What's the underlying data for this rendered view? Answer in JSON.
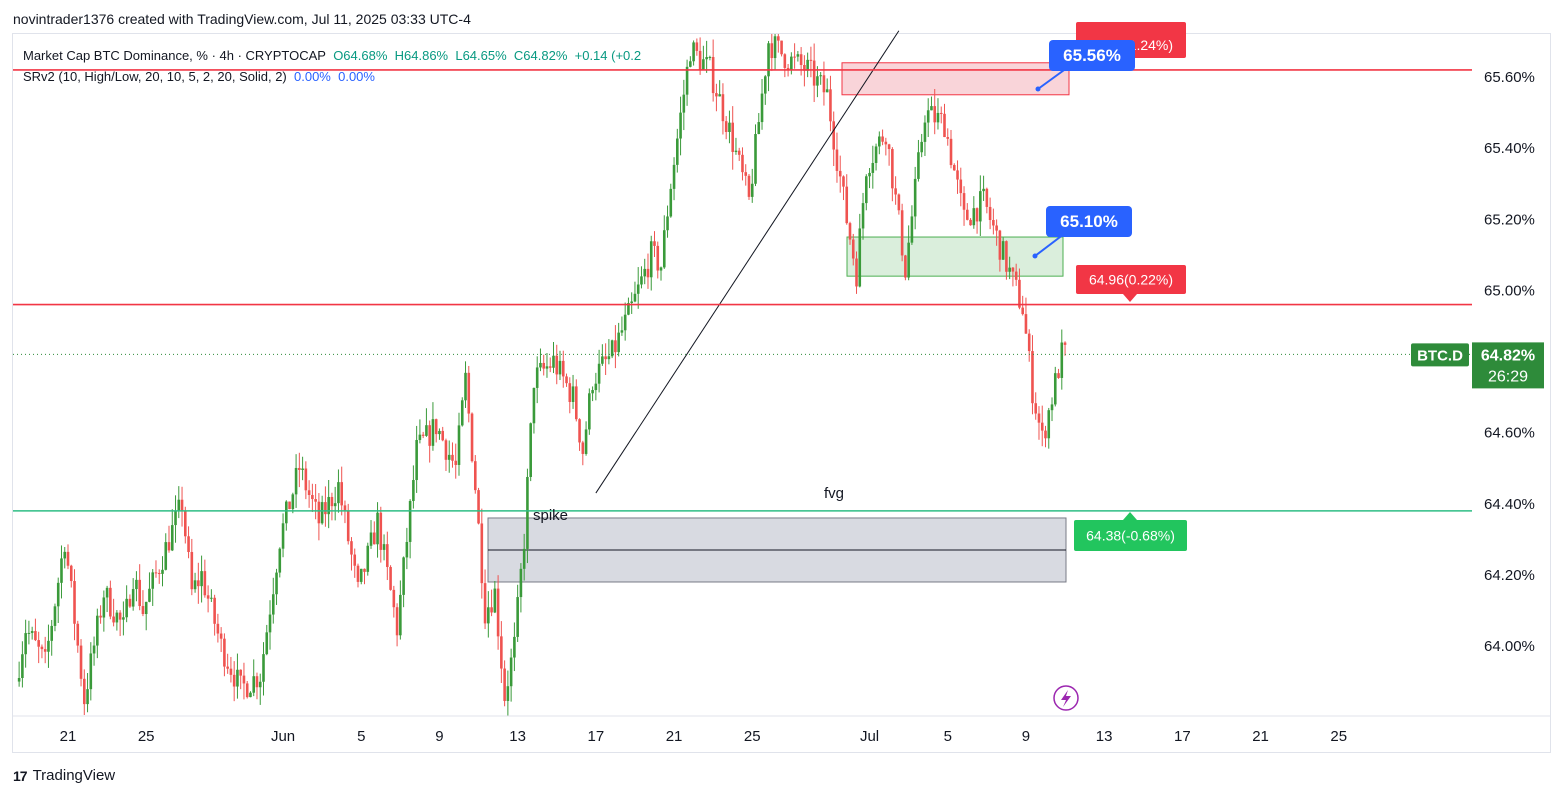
{
  "header": {
    "caption": "novintrader1376 created with TradingView.com, Jul 11, 2025 03:33 UTC-4"
  },
  "legend": {
    "line1": "Market Cap BTC Dominance, % · 4h · CRYPTOCAP",
    "open": "O64.68%",
    "high": "H64.86%",
    "low": "L64.65%",
    "close": "C64.82%",
    "change": "+0.14 (+0.2",
    "line2": "SRv2 (10, High/Low, 20, 10, 5, 2, 20, Solid, 2)",
    "val1": "0.00%",
    "val2": "0.00%"
  },
  "footer": {
    "brand": "TradingView",
    "logo": "17"
  },
  "colors": {
    "up": "#26a69a",
    "upCandle": "#3a9a3a",
    "down": "#ef5350",
    "resistance": "#f23645",
    "support": "#22ab94",
    "callout": "#2962ff",
    "lastPrice": "#2e8b3a"
  },
  "chart_data": {
    "type": "candlestick",
    "symbol": "BTC.D",
    "timeframe": "4h",
    "ylim": [
      63.82,
      65.73
    ],
    "x_ticks": [
      {
        "label": "21",
        "day": 21
      },
      {
        "label": "25",
        "day": 25
      },
      {
        "label": "Jun",
        "day": 32
      },
      {
        "label": "5",
        "day": 36
      },
      {
        "label": "9",
        "day": 40
      },
      {
        "label": "13",
        "day": 44
      },
      {
        "label": "17",
        "day": 48
      },
      {
        "label": "21",
        "day": 52
      },
      {
        "label": "25",
        "day": 56
      },
      {
        "label": "Jul",
        "day": 62
      },
      {
        "label": "5",
        "day": 66
      },
      {
        "label": "9",
        "day": 70
      },
      {
        "label": "13",
        "day": 74
      },
      {
        "label": "17",
        "day": 78
      },
      {
        "label": "21",
        "day": 82
      },
      {
        "label": "25",
        "day": 86
      }
    ],
    "y_ticks": [
      "65.60%",
      "65.40%",
      "65.20%",
      "65.00%",
      "64.60%",
      "64.40%",
      "64.20%",
      "64.00%"
    ],
    "y_tick_values": [
      65.6,
      65.4,
      65.2,
      65.0,
      64.6,
      64.4,
      64.2,
      64.0
    ],
    "price_path": [
      [
        18.5,
        63.9
      ],
      [
        19,
        64.05
      ],
      [
        20,
        63.95
      ],
      [
        21,
        64.3
      ],
      [
        22,
        63.85
      ],
      [
        23,
        64.15
      ],
      [
        24,
        64.05
      ],
      [
        24.5,
        64.2
      ],
      [
        25,
        64.1
      ],
      [
        26,
        64.25
      ],
      [
        27,
        64.4
      ],
      [
        27.5,
        64.15
      ],
      [
        28,
        64.2
      ],
      [
        29,
        64.0
      ],
      [
        30,
        63.88
      ],
      [
        31,
        63.92
      ],
      [
        32,
        64.3
      ],
      [
        33,
        64.5
      ],
      [
        34,
        64.35
      ],
      [
        35,
        64.45
      ],
      [
        36,
        64.15
      ],
      [
        37,
        64.35
      ],
      [
        38,
        64.05
      ],
      [
        39,
        64.55
      ],
      [
        40,
        64.62
      ],
      [
        41,
        64.5
      ],
      [
        41.5,
        64.75
      ],
      [
        42,
        64.45
      ],
      [
        42.5,
        64.1
      ],
      [
        43,
        64.15
      ],
      [
        43.5,
        63.86
      ],
      [
        44,
        64.0
      ],
      [
        44.5,
        64.3
      ],
      [
        45,
        64.75
      ],
      [
        46,
        64.8
      ],
      [
        47,
        64.7
      ],
      [
        47.5,
        64.55
      ],
      [
        48,
        64.75
      ],
      [
        49,
        64.82
      ],
      [
        50,
        64.95
      ],
      [
        51,
        65.1
      ],
      [
        51.5,
        65.07
      ],
      [
        52,
        65.3
      ],
      [
        53,
        65.68
      ],
      [
        54,
        65.62
      ],
      [
        55,
        65.45
      ],
      [
        56,
        65.25
      ],
      [
        57,
        65.7
      ],
      [
        58,
        65.65
      ],
      [
        59,
        65.62
      ],
      [
        60,
        65.55
      ],
      [
        61,
        65.2
      ],
      [
        61.5,
        65.05
      ],
      [
        62,
        65.35
      ],
      [
        63,
        65.45
      ],
      [
        64,
        65.06
      ],
      [
        65,
        65.5
      ],
      [
        66,
        65.47
      ],
      [
        67,
        65.2
      ],
      [
        68,
        65.25
      ],
      [
        69,
        65.1
      ],
      [
        70,
        64.95
      ],
      [
        70.5,
        64.72
      ],
      [
        71,
        64.58
      ],
      [
        71.5,
        64.7
      ],
      [
        72,
        64.82
      ]
    ],
    "horizontal_levels": [
      {
        "value": 65.62,
        "color": "resistance"
      },
      {
        "value": 64.96,
        "color": "resistance",
        "label": "64.96(0.22%)"
      },
      {
        "value": 64.38,
        "color": "support",
        "label": "64.38(-0.68%)"
      }
    ],
    "last_price": {
      "value": 64.82,
      "label": "BTC.D",
      "price": "64.82%",
      "countdown": "26:29"
    },
    "top_cut_label": "65.62(1.24%)",
    "zones": [
      {
        "name": "supply-zone",
        "from_day": 61,
        "to_day": 73,
        "y1": 65.55,
        "y2": 65.64,
        "color": "#f8cdd2"
      },
      {
        "name": "demand-zone",
        "from_day": 61,
        "to_day": 73,
        "y1": 65.04,
        "y2": 65.15,
        "color": "#d4ebd6"
      },
      {
        "name": "fvg-zone",
        "from_day": 43,
        "to_day": 73,
        "y1": 64.18,
        "y2": 64.36,
        "color": "#d1d4dc"
      }
    ],
    "fvg_mid": 64.27,
    "trendline": {
      "from": [
        48,
        64.43
      ],
      "to": [
        63.5,
        65.73
      ]
    },
    "callouts": [
      {
        "text": "65.56%",
        "day": 69.5,
        "value": 65.56,
        "box_day": 71.5,
        "box_value": 65.68
      },
      {
        "text": "65.10%",
        "day": 69.5,
        "value": 65.1,
        "box_day": 71.5,
        "box_value": 65.22
      }
    ],
    "annotations": [
      {
        "text": "fvg",
        "day": 57,
        "value": 64.43
      },
      {
        "text": "spike",
        "day": 44.5,
        "value": 64.37
      }
    ]
  }
}
